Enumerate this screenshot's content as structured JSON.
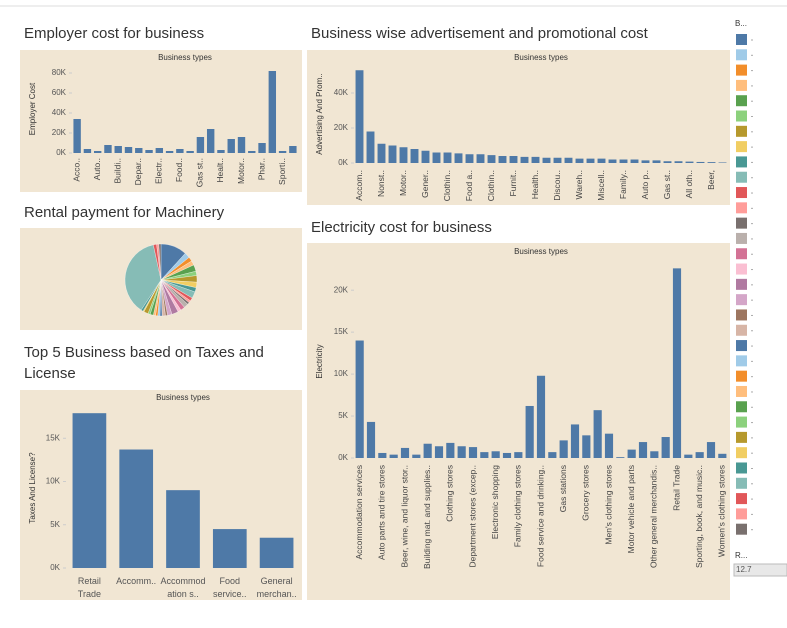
{
  "chart_data": [
    {
      "type": "bar",
      "title": "Employer cost for business",
      "x_header": "Business types",
      "y_label": "Employer Cost",
      "color": "#4e79a7",
      "categories": [
        "Acco..",
        null,
        "Auto..",
        null,
        "Buildi..",
        null,
        "Depar..",
        null,
        "Electr..",
        null,
        "Food..",
        null,
        "Gas st..",
        null,
        "Healt..",
        null,
        "Motor..",
        null,
        "Phar..",
        null,
        "Sporti..",
        null
      ],
      "values": [
        34000,
        4000,
        2000,
        8000,
        7000,
        6000,
        5000,
        3000,
        5000,
        2000,
        4000,
        2000,
        16000,
        24000,
        3000,
        14000,
        16000,
        2000,
        10000,
        82000,
        2000,
        7000
      ],
      "ylim": [
        0,
        88000
      ],
      "yticks": [
        {
          "value": 0,
          "label": "0K"
        },
        {
          "value": 20000,
          "label": "20K"
        },
        {
          "value": 40000,
          "label": "40K"
        },
        {
          "value": 60000,
          "label": "60K"
        },
        {
          "value": 80000,
          "label": "80K"
        }
      ]
    },
    {
      "type": "bar",
      "title": "Business wise advertisement and promotional cost",
      "x_header": "Business types",
      "y_label": "Advertising And Prom..",
      "color": "#4e79a7",
      "categories": [
        "Accom..",
        null,
        "Nonst..",
        null,
        "Motor..",
        null,
        "Gener..",
        null,
        "Clothin..",
        null,
        "Food a..",
        null,
        "Clothin..",
        null,
        "Furnit..",
        null,
        "Health..",
        null,
        "Discou..",
        null,
        "Wareh..",
        null,
        "Miscell..",
        null,
        "Family..",
        null,
        "Auto p..",
        null,
        "Gas st..",
        null,
        "All oth..",
        null,
        "Beer,",
        null
      ],
      "values": [
        53000,
        18000,
        11000,
        10000,
        9000,
        8000,
        7000,
        6000,
        6000,
        5500,
        5000,
        5000,
        4500,
        4000,
        4000,
        3500,
        3500,
        3000,
        3000,
        3000,
        2500,
        2500,
        2500,
        2000,
        2000,
        2000,
        1500,
        1500,
        1000,
        1000,
        800,
        600,
        500,
        300
      ],
      "ylim": [
        0,
        56000
      ],
      "yticks": [
        {
          "value": 0,
          "label": "0K"
        },
        {
          "value": 20000,
          "label": "20K"
        },
        {
          "value": 40000,
          "label": "40K"
        }
      ]
    },
    {
      "type": "pie",
      "title": "Rental payment for Machinery",
      "legend_title": "B...",
      "size_legend_title": "R...",
      "size_legend_label": "12.7",
      "values": [
        12,
        2.5,
        2,
        2,
        3,
        2,
        3,
        2.5,
        2,
        3,
        1.5,
        1,
        1,
        2,
        2,
        1.5,
        3,
        2,
        1,
        1.5,
        1,
        1,
        1,
        1,
        1.5,
        1,
        2,
        0.5,
        1,
        38,
        1.5,
        1,
        1
      ],
      "colors": [
        "#4e79a7",
        "#a0cbe8",
        "#f28e2b",
        "#ffbe7d",
        "#59a14f",
        "#8cd17d",
        "#b6992d",
        "#f1ce63",
        "#499894",
        "#86bcb6",
        "#e15759",
        "#ff9d9a",
        "#79706e",
        "#bab0ac",
        "#d37295",
        "#fabfd2",
        "#b07aa1",
        "#d4a6c8",
        "#9d7660",
        "#d7b5a6",
        "#4e79a7",
        "#a0cbe8",
        "#f28e2b",
        "#ffbe7d",
        "#59a14f",
        "#8cd17d",
        "#b6992d",
        "#f1ce63",
        "#499894",
        "#86bcb6",
        "#e15759",
        "#ff9d9a",
        "#79706e"
      ]
    },
    {
      "type": "bar",
      "title": "Top 5 Business based on Taxes and License",
      "x_header": "Business types",
      "y_label": "Taxes And License?",
      "color": "#4e79a7",
      "wrap_labels": true,
      "categories": [
        "Retail Trade",
        "Accomm..",
        "Accommodation s..",
        "Food service..",
        "General merchan.."
      ],
      "values": [
        17900,
        13700,
        9000,
        4500,
        3500
      ],
      "ylim": [
        0,
        18500
      ],
      "yticks": [
        {
          "value": 0,
          "label": "0K"
        },
        {
          "value": 5000,
          "label": "5K"
        },
        {
          "value": 10000,
          "label": "10K"
        },
        {
          "value": 15000,
          "label": "15K"
        }
      ]
    },
    {
      "type": "bar",
      "title": "Electricity cost for business",
      "x_header": "Business types",
      "y_label": "Electricity",
      "color": "#4e79a7",
      "categories": [
        "Accommodation services",
        null,
        "Auto parts and tire stores",
        null,
        "Beer, wine, and liquor stor..",
        null,
        "Building mat. and supplies..",
        null,
        "Clothing stores",
        null,
        "Department stores (excep..",
        null,
        "Electronic shopping",
        null,
        "Family clothing stores",
        null,
        "Food service and drinking..",
        null,
        "Gas stations",
        null,
        "Grocery stores",
        null,
        "Men's clothing stores",
        null,
        "Motor vehicle and parts",
        null,
        "Other general merchandis..",
        null,
        "Retail Trade",
        null,
        "Sporting, book, and music..",
        null,
        "Women's clothing stores"
      ],
      "values": [
        14000,
        4300,
        600,
        400,
        1200,
        400,
        1700,
        1400,
        1800,
        1400,
        1300,
        700,
        800,
        600,
        700,
        6200,
        9800,
        700,
        2100,
        4000,
        2700,
        5700,
        2900,
        100,
        1000,
        1900,
        800,
        2500,
        22600,
        400,
        700,
        1900,
        500
      ],
      "ylim": [
        0,
        23000
      ],
      "yticks": [
        {
          "value": 0,
          "label": "0K"
        },
        {
          "value": 5000,
          "label": "5K"
        },
        {
          "value": 10000,
          "label": "10K"
        },
        {
          "value": 15000,
          "label": "15K"
        },
        {
          "value": 20000,
          "label": "20K"
        }
      ]
    }
  ]
}
